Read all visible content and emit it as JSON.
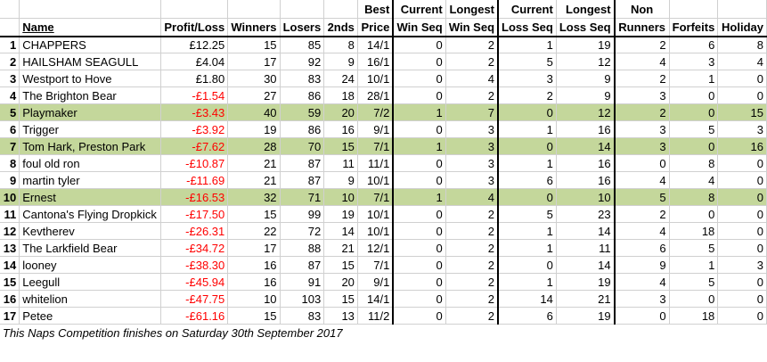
{
  "headers": {
    "name": "Name",
    "profit_loss": "Profit/Loss",
    "winners": "Winners",
    "losers": "Losers",
    "seconds": "2nds",
    "best_price": [
      "Best",
      "Price"
    ],
    "current_win_seq": [
      "Current",
      "Win Seq"
    ],
    "longest_win_seq": [
      "Longest",
      "Win Seq"
    ],
    "current_loss_seq": [
      "Current",
      "Loss Seq"
    ],
    "longest_loss_seq": [
      "Longest",
      "Loss Seq"
    ],
    "non_runners": [
      "Non",
      "Runners"
    ],
    "forfeits": "Forfeits",
    "holiday": "Holiday"
  },
  "colors": {
    "highlight_row": "#c4d79b",
    "negative": "#ff0000"
  },
  "rows": [
    {
      "rank": "1",
      "name": "CHAPPERS",
      "pl": "£12.25",
      "neg": false,
      "w": "15",
      "l": "85",
      "s": "8",
      "bp": "14/1",
      "cws": "0",
      "lws": "2",
      "cls": "1",
      "lls": "19",
      "nr": "2",
      "f": "6",
      "h": "8",
      "hl": false
    },
    {
      "rank": "2",
      "name": "HAILSHAM SEAGULL",
      "pl": "£4.04",
      "neg": false,
      "w": "17",
      "l": "92",
      "s": "9",
      "bp": "16/1",
      "cws": "0",
      "lws": "2",
      "cls": "5",
      "lls": "12",
      "nr": "4",
      "f": "3",
      "h": "4",
      "hl": false
    },
    {
      "rank": "3",
      "name": "Westport to Hove",
      "pl": "£1.80",
      "neg": false,
      "w": "30",
      "l": "83",
      "s": "24",
      "bp": "10/1",
      "cws": "0",
      "lws": "4",
      "cls": "3",
      "lls": "9",
      "nr": "2",
      "f": "1",
      "h": "0",
      "hl": false
    },
    {
      "rank": "4",
      "name": "The Brighton Bear",
      "pl": "-£1.54",
      "neg": true,
      "w": "27",
      "l": "86",
      "s": "18",
      "bp": "28/1",
      "cws": "0",
      "lws": "2",
      "cls": "2",
      "lls": "9",
      "nr": "3",
      "f": "0",
      "h": "0",
      "hl": false
    },
    {
      "rank": "5",
      "name": "Playmaker",
      "pl": "-£3.43",
      "neg": true,
      "w": "40",
      "l": "59",
      "s": "20",
      "bp": "7/2",
      "cws": "1",
      "lws": "7",
      "cls": "0",
      "lls": "12",
      "nr": "2",
      "f": "0",
      "h": "15",
      "hl": true
    },
    {
      "rank": "6",
      "name": "Trigger",
      "pl": "-£3.92",
      "neg": true,
      "w": "19",
      "l": "86",
      "s": "16",
      "bp": "9/1",
      "cws": "0",
      "lws": "3",
      "cls": "1",
      "lls": "16",
      "nr": "3",
      "f": "5",
      "h": "3",
      "hl": false
    },
    {
      "rank": "7",
      "name": "Tom Hark, Preston Park",
      "pl": "-£7.62",
      "neg": true,
      "w": "28",
      "l": "70",
      "s": "15",
      "bp": "7/1",
      "cws": "1",
      "lws": "3",
      "cls": "0",
      "lls": "14",
      "nr": "3",
      "f": "0",
      "h": "16",
      "hl": true
    },
    {
      "rank": "8",
      "name": "foul old ron",
      "pl": "-£10.87",
      "neg": true,
      "w": "21",
      "l": "87",
      "s": "11",
      "bp": "11/1",
      "cws": "0",
      "lws": "3",
      "cls": "1",
      "lls": "16",
      "nr": "0",
      "f": "8",
      "h": "0",
      "hl": false
    },
    {
      "rank": "9",
      "name": "martin tyler",
      "pl": "-£11.69",
      "neg": true,
      "w": "21",
      "l": "87",
      "s": "9",
      "bp": "10/1",
      "cws": "0",
      "lws": "3",
      "cls": "6",
      "lls": "16",
      "nr": "4",
      "f": "4",
      "h": "0",
      "hl": false
    },
    {
      "rank": "10",
      "name": "Ernest",
      "pl": "-£16.53",
      "neg": true,
      "w": "32",
      "l": "71",
      "s": "10",
      "bp": "7/1",
      "cws": "1",
      "lws": "4",
      "cls": "0",
      "lls": "10",
      "nr": "5",
      "f": "8",
      "h": "0",
      "hl": true
    },
    {
      "rank": "11",
      "name": "Cantona's Flying Dropkick",
      "pl": "-£17.50",
      "neg": true,
      "w": "15",
      "l": "99",
      "s": "19",
      "bp": "10/1",
      "cws": "0",
      "lws": "2",
      "cls": "5",
      "lls": "23",
      "nr": "2",
      "f": "0",
      "h": "0",
      "hl": false
    },
    {
      "rank": "12",
      "name": "Kevtherev",
      "pl": "-£26.31",
      "neg": true,
      "w": "22",
      "l": "72",
      "s": "14",
      "bp": "10/1",
      "cws": "0",
      "lws": "2",
      "cls": "1",
      "lls": "14",
      "nr": "4",
      "f": "18",
      "h": "0",
      "hl": false
    },
    {
      "rank": "13",
      "name": "The Larkfield Bear",
      "pl": "-£34.72",
      "neg": true,
      "w": "17",
      "l": "88",
      "s": "21",
      "bp": "12/1",
      "cws": "0",
      "lws": "2",
      "cls": "1",
      "lls": "11",
      "nr": "6",
      "f": "5",
      "h": "0",
      "hl": false
    },
    {
      "rank": "14",
      "name": "looney",
      "pl": "-£38.30",
      "neg": true,
      "w": "16",
      "l": "87",
      "s": "15",
      "bp": "7/1",
      "cws": "0",
      "lws": "2",
      "cls": "0",
      "lls": "14",
      "nr": "9",
      "f": "1",
      "h": "3",
      "hl": false
    },
    {
      "rank": "15",
      "name": "Leegull",
      "pl": "-£45.94",
      "neg": true,
      "w": "16",
      "l": "91",
      "s": "20",
      "bp": "9/1",
      "cws": "0",
      "lws": "2",
      "cls": "1",
      "lls": "19",
      "nr": "4",
      "f": "5",
      "h": "0",
      "hl": false
    },
    {
      "rank": "16",
      "name": "whitelion",
      "pl": "-£47.75",
      "neg": true,
      "w": "10",
      "l": "103",
      "s": "15",
      "bp": "14/1",
      "cws": "0",
      "lws": "2",
      "cls": "14",
      "lls": "21",
      "nr": "3",
      "f": "0",
      "h": "0",
      "hl": false
    },
    {
      "rank": "17",
      "name": "Petee",
      "pl": "-£61.16",
      "neg": true,
      "w": "15",
      "l": "83",
      "s": "13",
      "bp": "11/2",
      "cws": "0",
      "lws": "2",
      "cls": "6",
      "lls": "19",
      "nr": "0",
      "f": "18",
      "h": "0",
      "hl": false
    }
  ],
  "footnote": "This Naps Competition finishes on Saturday 30th September 2017"
}
